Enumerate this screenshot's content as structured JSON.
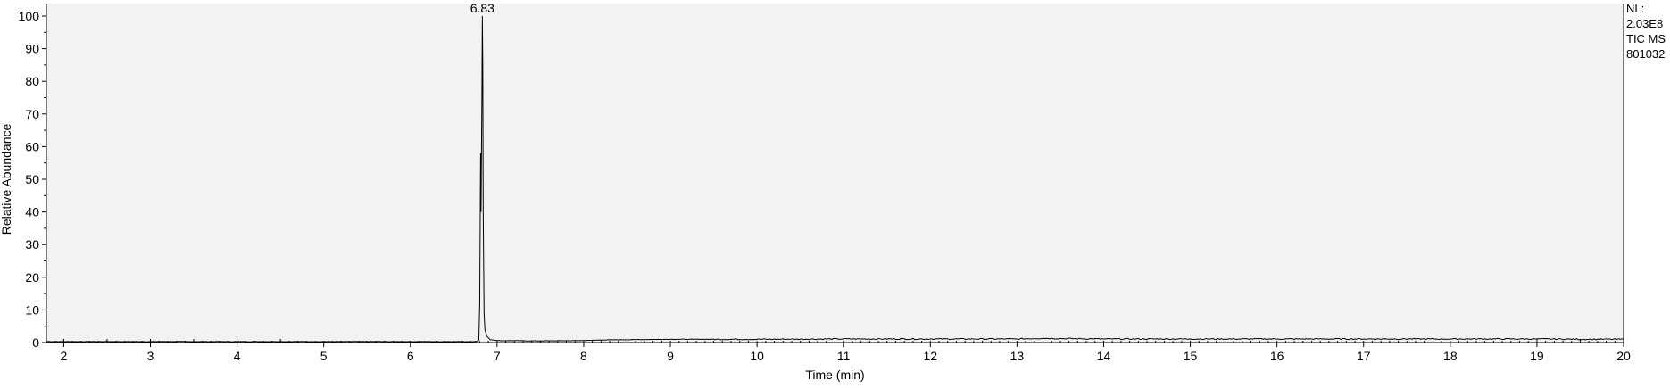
{
  "chart_data": {
    "type": "line",
    "title": "",
    "xlabel": "Time (min)",
    "ylabel": "Relative Abundance",
    "xlim": [
      1.8,
      20.0
    ],
    "ylim": [
      0,
      100
    ],
    "x_ticks": [
      "2",
      "3",
      "4",
      "5",
      "6",
      "7",
      "8",
      "9",
      "10",
      "11",
      "12",
      "13",
      "14",
      "15",
      "16",
      "17",
      "18",
      "19",
      "20"
    ],
    "y_ticks": [
      "0",
      "10",
      "20",
      "30",
      "40",
      "50",
      "60",
      "70",
      "80",
      "90",
      "100"
    ],
    "annotations": [
      {
        "text": "6.83",
        "x": 6.83,
        "y": 100
      }
    ],
    "info_box": [
      "NL:",
      "2.03E8",
      "TIC  MS",
      "801032"
    ],
    "grid": false,
    "series": [
      {
        "color": "#000000",
        "points": [
          [
            1.8,
            0.3
          ],
          [
            2.5,
            0.3
          ],
          [
            3.5,
            0.3
          ],
          [
            4.5,
            0.3
          ],
          [
            5.5,
            0.3
          ],
          [
            6.5,
            0.3
          ],
          [
            6.76,
            0.3
          ],
          [
            6.79,
            0.8
          ],
          [
            6.8,
            12
          ],
          [
            6.81,
            58
          ],
          [
            6.815,
            40
          ],
          [
            6.825,
            75
          ],
          [
            6.83,
            100
          ],
          [
            6.835,
            85
          ],
          [
            6.84,
            40
          ],
          [
            6.85,
            9
          ],
          [
            6.86,
            4
          ],
          [
            6.88,
            2
          ],
          [
            6.92,
            0.9
          ],
          [
            7.0,
            0.6
          ],
          [
            7.5,
            0.5
          ],
          [
            8.0,
            0.6
          ],
          [
            8.2,
            0.8
          ],
          [
            8.6,
            0.9
          ],
          [
            9.0,
            1.0
          ],
          [
            10.0,
            1.0
          ],
          [
            11.0,
            1.1
          ],
          [
            12.0,
            1.1
          ],
          [
            13.0,
            1.1
          ],
          [
            13.3,
            1.3
          ],
          [
            14.0,
            1.1
          ],
          [
            15.0,
            1.1
          ],
          [
            16.0,
            1.1
          ],
          [
            17.0,
            1.1
          ],
          [
            18.0,
            1.1
          ],
          [
            19.0,
            1.1
          ],
          [
            19.6,
            1.0
          ],
          [
            20.0,
            1.0
          ]
        ]
      }
    ]
  }
}
